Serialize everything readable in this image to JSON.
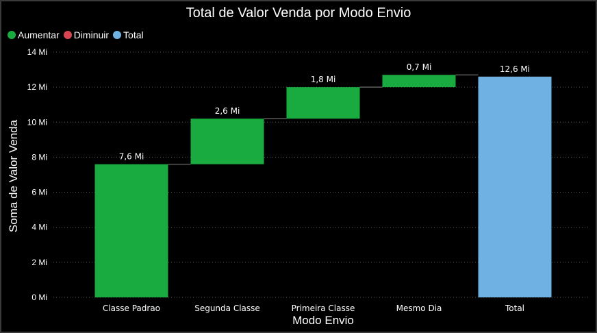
{
  "chart_data": {
    "type": "bar",
    "subtype": "waterfall",
    "title": "Total de Valor Venda por Modo Envio",
    "xlabel": "Modo Envio",
    "ylabel": "Soma de Valor Venda",
    "categories": [
      "Classe Padrao",
      "Segunda Classe",
      "Primeira Classe",
      "Mesmo Dia",
      "Total"
    ],
    "values": [
      7.6,
      2.6,
      1.8,
      0.7,
      12.6
    ],
    "data_labels": [
      "7,6 Mi",
      "2,6 Mi",
      "1,8 Mi",
      "0,7 Mi",
      "12,6 Mi"
    ],
    "kinds": [
      "increase",
      "increase",
      "increase",
      "increase",
      "total"
    ],
    "ylim": [
      0,
      14
    ],
    "y_ticks": [
      0,
      2,
      4,
      6,
      8,
      10,
      12,
      14
    ],
    "y_tick_labels": [
      "0 Mi",
      "2 Mi",
      "4 Mi",
      "6 Mi",
      "8 Mi",
      "10 Mi",
      "12 Mi",
      "14 Mi"
    ],
    "grid": true,
    "legend": {
      "position": "top-left",
      "items": [
        {
          "label": "Aumentar",
          "color": "#1aab40"
        },
        {
          "label": "Diminuir",
          "color": "#d64550"
        },
        {
          "label": "Total",
          "color": "#6fb1e2"
        }
      ]
    }
  },
  "colors": {
    "increase": "#1aab40",
    "decrease": "#d64550",
    "total": "#6fb1e2",
    "grid": "#5a5a5a",
    "connector": "#8a8a8a"
  }
}
